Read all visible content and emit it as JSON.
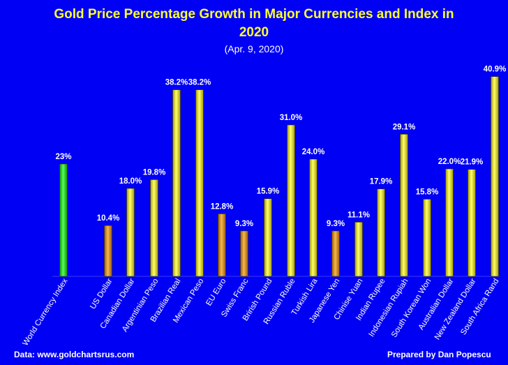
{
  "header": {
    "title_line1": "Gold Price Percentage Growth in Major Currencies and Index in",
    "title_line2": "2020",
    "subtitle": "(Apr. 9, 2020)"
  },
  "footer": {
    "source": "Data: www.goldchartsrus.com",
    "credit": "Prepared by Dan Popescu"
  },
  "colors": {
    "background": "#0000f5",
    "bar_green": "#33dd33",
    "bar_orange": "#e39b2a",
    "bar_yellow": "#f2ea2e",
    "text": "#ffffff",
    "title": "#ffff33"
  },
  "chart_data": {
    "type": "bar",
    "title": "Gold Price Percentage Growth in Major Currencies and Index in 2020",
    "subtitle": "(Apr. 9, 2020)",
    "xlabel": "",
    "ylabel": "",
    "ylim": [
      0,
      45
    ],
    "grid": false,
    "legend": "none",
    "categories": [
      "World Currency Index",
      "US Dollar",
      "Canadian Dollar",
      "Argentinian Peso",
      "Brazilian Real",
      "Mexican Peso",
      "EU Euro",
      "Swiss Franc",
      "Brirish Pound",
      "Russian Ruble",
      "Turkish Lira",
      "Japanese Yen",
      "Chinise Yuan",
      "Indian Rupee",
      "Indonesian Rupiah",
      "South Korean Won",
      "Australian Dollar",
      "New Zealand Dollar",
      "South Africa Rand"
    ],
    "values": [
      23,
      10.4,
      18.0,
      19.8,
      38.2,
      38.2,
      12.8,
      9.3,
      15.9,
      31.0,
      24.0,
      9.3,
      11.1,
      17.9,
      29.1,
      15.8,
      22.0,
      21.9,
      40.9
    ],
    "labels": [
      "23%",
      "10.4%",
      "18.0%",
      "19.8%",
      "38.2%",
      "38.2%",
      "12.8%",
      "9.3%",
      "15.9%",
      "31.0%",
      "24.0%",
      "9.3%",
      "11.1%",
      "17.9%",
      "29.1%",
      "15.8%",
      "22.0%",
      "21.9%",
      "40.9%"
    ],
    "bar_colors": [
      "green",
      "orange",
      "yellow",
      "yellow",
      "yellow",
      "yellow",
      "orange",
      "orange",
      "yellow",
      "yellow",
      "yellow",
      "orange",
      "yellow",
      "yellow",
      "yellow",
      "yellow",
      "yellow",
      "yellow",
      "yellow"
    ]
  }
}
